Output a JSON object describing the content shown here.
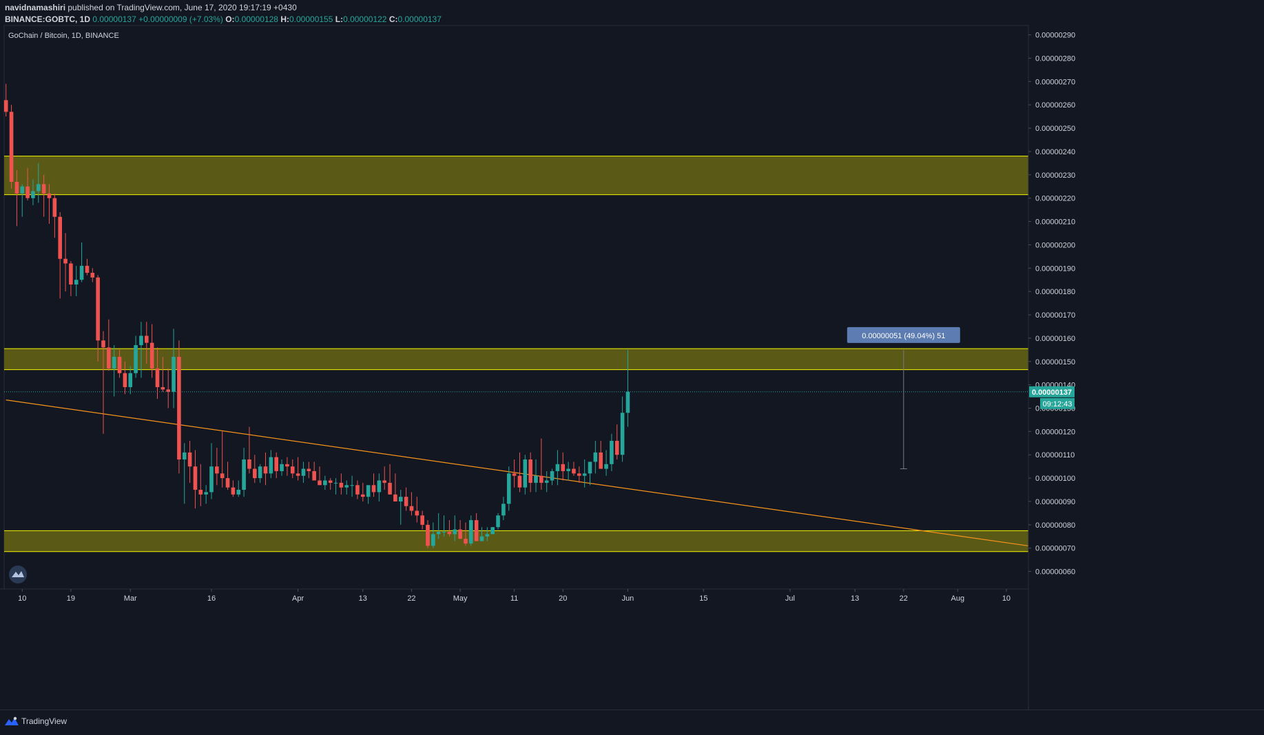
{
  "header": {
    "author": "navidnamashiri",
    "published": "published on TradingView.com, June 17, 2020 19:17:19 +0430",
    "symbol": "BINANCE:GOBTC, 1D",
    "close_main": "0.00000137",
    "change": "+0.00000009 (+7.03%)",
    "o_label": "O:",
    "o_value": "0.00000128",
    "h_label": "H:",
    "h_value": "0.00000155",
    "l_label": "L:",
    "l_value": "0.00000122",
    "c_label": "C:",
    "c_value": "0.00000137"
  },
  "footer": {
    "brand": "TradingView"
  },
  "colors": {
    "background": "#131722",
    "up": "#26a69a",
    "down": "#ef5350",
    "zone_fill": "#5e5e16",
    "zone_border": "#f5f500",
    "trendline": "#f7931a",
    "measure_label_bg": "#5c7cb2",
    "text": "#d1d4dc"
  },
  "chart_data": {
    "type": "candlestick",
    "title": "GoChain / Bitcoin, 1D, BINANCE",
    "y_ticks": [
      "0.00000290",
      "0.00000280",
      "0.00000270",
      "0.00000260",
      "0.00000250",
      "0.00000240",
      "0.00000230",
      "0.00000220",
      "0.00000210",
      "0.00000200",
      "0.00000190",
      "0.00000180",
      "0.00000170",
      "0.00000160",
      "0.00000150",
      "0.00000140",
      "0.00000130",
      "0.00000120",
      "0.00000110",
      "0.00000100",
      "0.00000090",
      "0.00000080",
      "0.00000070",
      "0.00000060"
    ],
    "y_tick_values": [
      290,
      280,
      270,
      260,
      250,
      240,
      230,
      220,
      210,
      200,
      190,
      180,
      170,
      160,
      150,
      140,
      130,
      120,
      110,
      100,
      90,
      80,
      70,
      60
    ],
    "y_unit": "1e-8 BTC",
    "ylim": [
      52.5,
      294
    ],
    "x_start": "2020-02-07",
    "x_ticks": [
      {
        "label": "10",
        "date": "2020-02-10"
      },
      {
        "label": "19",
        "date": "2020-02-19"
      },
      {
        "label": "Mar",
        "date": "2020-03-01"
      },
      {
        "label": "16",
        "date": "2020-03-16"
      },
      {
        "label": "Apr",
        "date": "2020-04-01"
      },
      {
        "label": "13",
        "date": "2020-04-13"
      },
      {
        "label": "22",
        "date": "2020-04-22"
      },
      {
        "label": "May",
        "date": "2020-05-01"
      },
      {
        "label": "11",
        "date": "2020-05-11"
      },
      {
        "label": "20",
        "date": "2020-05-20"
      },
      {
        "label": "Jun",
        "date": "2020-06-01"
      },
      {
        "label": "15",
        "date": "2020-06-15"
      },
      {
        "label": "Jul",
        "date": "2020-07-01"
      },
      {
        "label": "13",
        "date": "2020-07-13"
      },
      {
        "label": "22",
        "date": "2020-07-22"
      },
      {
        "label": "Aug",
        "date": "2020-08-01"
      },
      {
        "label": "10",
        "date": "2020-08-10"
      }
    ],
    "last_price_label": "0.00000137",
    "countdown_label": "09:12:43",
    "last_price": 137,
    "candles": [
      [
        262,
        269,
        255,
        257
      ],
      [
        257,
        260,
        224,
        227
      ],
      [
        227,
        232,
        208,
        222
      ],
      [
        222,
        226,
        212,
        225
      ],
      [
        225,
        233,
        219,
        220
      ],
      [
        220,
        228,
        217,
        223
      ],
      [
        223,
        235,
        218,
        226
      ],
      [
        226,
        230,
        212,
        222
      ],
      [
        222,
        226,
        209,
        220
      ],
      [
        220,
        222,
        203,
        212
      ],
      [
        212,
        214,
        177,
        194
      ],
      [
        194,
        205,
        180,
        192
      ],
      [
        192,
        193,
        178,
        183
      ],
      [
        183,
        191,
        178,
        185
      ],
      [
        185,
        201,
        184,
        191
      ],
      [
        191,
        194,
        187,
        188
      ],
      [
        188,
        190,
        184,
        186
      ],
      [
        186,
        187,
        150,
        159
      ],
      [
        159,
        163,
        119,
        156
      ],
      [
        156,
        168,
        146,
        147
      ],
      [
        147,
        157,
        135,
        152
      ],
      [
        152,
        155,
        143,
        145
      ],
      [
        145,
        150,
        136,
        139
      ],
      [
        139,
        148,
        136,
        145
      ],
      [
        145,
        161,
        143,
        157
      ],
      [
        157,
        167,
        143,
        161
      ],
      [
        161,
        167,
        149,
        158
      ],
      [
        158,
        166,
        143,
        147
      ],
      [
        147,
        156,
        134,
        139
      ],
      [
        139,
        152,
        137,
        138
      ],
      [
        138,
        147,
        130,
        137
      ],
      [
        137,
        164,
        130,
        152
      ],
      [
        152,
        159,
        102,
        108
      ],
      [
        108,
        115,
        89,
        111
      ],
      [
        111,
        116,
        98,
        105
      ],
      [
        105,
        112,
        87,
        95
      ],
      [
        95,
        106,
        88,
        93
      ],
      [
        93,
        97,
        89,
        94
      ],
      [
        94,
        115,
        91,
        105
      ],
      [
        105,
        113,
        97,
        102
      ],
      [
        102,
        120,
        96,
        100
      ],
      [
        100,
        107,
        95,
        96
      ],
      [
        96,
        99,
        92,
        93
      ],
      [
        93,
        99,
        92,
        95
      ],
      [
        95,
        113,
        92,
        108
      ],
      [
        108,
        122,
        102,
        104
      ],
      [
        104,
        110,
        98,
        100
      ],
      [
        100,
        106,
        98,
        105
      ],
      [
        105,
        111,
        97,
        102
      ],
      [
        102,
        112,
        100,
        109
      ],
      [
        109,
        111,
        100,
        103
      ],
      [
        103,
        108,
        101,
        106
      ],
      [
        106,
        109,
        101,
        105
      ],
      [
        105,
        108,
        100,
        102
      ],
      [
        102,
        109,
        99,
        101
      ],
      [
        101,
        107,
        98,
        104
      ],
      [
        104,
        107,
        100,
        103
      ],
      [
        103,
        107,
        100,
        99
      ],
      [
        99,
        105,
        97,
        97
      ],
      [
        97,
        101,
        95,
        99
      ],
      [
        99,
        100,
        95,
        98
      ],
      [
        98,
        100,
        93,
        98
      ],
      [
        98,
        102,
        93,
        96
      ],
      [
        96,
        99,
        93,
        97
      ],
      [
        97,
        101,
        92,
        97
      ],
      [
        97,
        99,
        91,
        93
      ],
      [
        93,
        98,
        90,
        92
      ],
      [
        92,
        97,
        89,
        97
      ],
      [
        97,
        102,
        92,
        94
      ],
      [
        94,
        102,
        90,
        99
      ],
      [
        99,
        105,
        95,
        98
      ],
      [
        98,
        106,
        93,
        93
      ],
      [
        93,
        102,
        90,
        90
      ],
      [
        90,
        95,
        80,
        92
      ],
      [
        92,
        96,
        86,
        88
      ],
      [
        88,
        94,
        84,
        86
      ],
      [
        86,
        92,
        81,
        84
      ],
      [
        84,
        86,
        78,
        80
      ],
      [
        80,
        82,
        70,
        71
      ],
      [
        71,
        81,
        70,
        76
      ],
      [
        76,
        85,
        74,
        77
      ],
      [
        77,
        84,
        75,
        77
      ],
      [
        77,
        82,
        75,
        76
      ],
      [
        76,
        84,
        73,
        78
      ],
      [
        78,
        82,
        74,
        74
      ],
      [
        74,
        81,
        71,
        72
      ],
      [
        72,
        84,
        71,
        82
      ],
      [
        82,
        85,
        74,
        73
      ],
      [
        73,
        79,
        73,
        75
      ],
      [
        75,
        79,
        73,
        76
      ],
      [
        76,
        79,
        76,
        79
      ],
      [
        79,
        85,
        78,
        84
      ],
      [
        84,
        92,
        82,
        89
      ],
      [
        89,
        105,
        86,
        102
      ],
      [
        102,
        108,
        96,
        101
      ],
      [
        101,
        111,
        94,
        96
      ],
      [
        96,
        110,
        93,
        108
      ],
      [
        108,
        111,
        94,
        98
      ],
      [
        98,
        108,
        94,
        101
      ],
      [
        101,
        117,
        95,
        98
      ],
      [
        98,
        103,
        94,
        99
      ],
      [
        99,
        104,
        97,
        103
      ],
      [
        103,
        112,
        97,
        106
      ],
      [
        106,
        111,
        99,
        103
      ],
      [
        103,
        107,
        99,
        104
      ],
      [
        104,
        107,
        101,
        102
      ],
      [
        102,
        105,
        98,
        101
      ],
      [
        101,
        108,
        96,
        102
      ],
      [
        102,
        107,
        97,
        107
      ],
      [
        107,
        116,
        102,
        111
      ],
      [
        111,
        116,
        104,
        104
      ],
      [
        104,
        112,
        101,
        106
      ],
      [
        106,
        119,
        103,
        116
      ],
      [
        116,
        123,
        108,
        110
      ],
      [
        110,
        135,
        107,
        128
      ],
      [
        128,
        155,
        122,
        137
      ]
    ],
    "zones": [
      [
        221.5,
        238
      ],
      [
        146.5,
        155.5
      ],
      [
        68.5,
        77.5
      ]
    ],
    "trendline": [
      [
        "2020-02-07",
        133.5
      ],
      [
        "2020-08-14",
        71
      ]
    ],
    "measure": {
      "date": "2020-07-22",
      "from": 104,
      "to": 155,
      "label": "0.00000051 (49.04%) 51"
    }
  }
}
